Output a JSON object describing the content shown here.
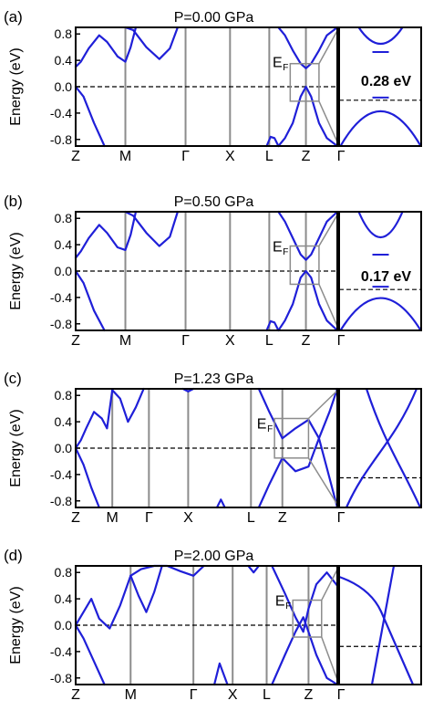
{
  "figure": {
    "ylabel": "Energy (eV)",
    "ef_label": "E",
    "ef_sub": "F"
  },
  "colors": {
    "band": "#1f1fd8",
    "kline": "#8c8c8c",
    "inset_box": "#8c8c8c"
  },
  "chart_data": [
    {
      "type": "line",
      "panel_label": "(a)",
      "title": "P=0.00 GPa",
      "ylabel": "Energy (eV)",
      "ylim": [
        -0.9,
        0.9
      ],
      "yticks": [
        0.8,
        0.4,
        0.0,
        -0.4,
        -0.8
      ],
      "ytick_labels": [
        "0.8",
        "0.4",
        "0.0",
        "-0.4",
        "-0.8"
      ],
      "xticks": [
        {
          "label": "Z",
          "pos": 0.0
        },
        {
          "label": "M",
          "pos": 0.19
        },
        {
          "label": "Γ",
          "pos": 0.42
        },
        {
          "label": "X",
          "pos": 0.59
        },
        {
          "label": "L",
          "pos": 0.74
        },
        {
          "label": "Z",
          "pos": 0.88
        },
        {
          "label": "Γ",
          "pos": 1.0
        }
      ],
      "fermi_level": 0.0,
      "series": [
        {
          "x": [
            0,
            0.02,
            0.05,
            0.09,
            0.12,
            0.16,
            0.19,
            0.21,
            0.23
          ],
          "y": [
            0.3,
            0.38,
            0.58,
            0.78,
            0.68,
            0.46,
            0.38,
            0.6,
            0.9
          ]
        },
        {
          "x": [
            0.19,
            0.22,
            0.27,
            0.32,
            0.36,
            0.39
          ],
          "y": [
            0.9,
            0.86,
            0.6,
            0.42,
            0.58,
            0.9
          ]
        },
        {
          "x": [
            0,
            0.03,
            0.07,
            0.11
          ],
          "y": [
            0,
            -0.15,
            -0.55,
            -0.9
          ]
        },
        {
          "x": [
            0.73,
            0.745,
            0.76,
            0.775
          ],
          "y": [
            -0.9,
            -0.76,
            -0.78,
            -0.9
          ]
        },
        {
          "x": [
            0.775,
            0.8,
            0.83,
            0.86,
            0.88,
            0.9,
            0.93,
            0.96,
            1.0
          ],
          "y": [
            0.9,
            0.78,
            0.55,
            0.35,
            0.28,
            0.35,
            0.55,
            0.78,
            0.9
          ]
        },
        {
          "x": [
            0.775,
            0.8,
            0.83,
            0.86,
            0.88,
            0.9,
            0.93,
            0.96,
            1.0
          ],
          "y": [
            -0.9,
            -0.78,
            -0.55,
            -0.15,
            0.0,
            -0.15,
            -0.55,
            -0.78,
            -0.9
          ]
        }
      ],
      "zoom_box": {
        "x": [
          0.82,
          0.93
        ],
        "y": [
          -0.22,
          0.35
        ]
      },
      "inset": {
        "gap_label": "0.28 eV",
        "gap_ev": 0.28,
        "cb_min": 0.28,
        "vb_max": 0.0
      }
    },
    {
      "type": "line",
      "panel_label": "(b)",
      "title": "P=0.50 GPa",
      "ylabel": "Energy (eV)",
      "ylim": [
        -0.9,
        0.9
      ],
      "yticks": [
        0.8,
        0.4,
        0.0,
        -0.4,
        -0.8
      ],
      "ytick_labels": [
        "0.8",
        "0.4",
        "0.0",
        "-0.4",
        "-0.8"
      ],
      "xticks": [
        {
          "label": "Z",
          "pos": 0.0
        },
        {
          "label": "M",
          "pos": 0.19
        },
        {
          "label": "Γ",
          "pos": 0.42
        },
        {
          "label": "X",
          "pos": 0.59
        },
        {
          "label": "L",
          "pos": 0.74
        },
        {
          "label": "Z",
          "pos": 0.88
        },
        {
          "label": "Γ",
          "pos": 1.0
        }
      ],
      "fermi_level": 0.0,
      "series": [
        {
          "x": [
            0,
            0.02,
            0.05,
            0.09,
            0.12,
            0.16,
            0.19,
            0.21,
            0.23
          ],
          "y": [
            0.2,
            0.3,
            0.5,
            0.7,
            0.58,
            0.36,
            0.32,
            0.55,
            0.9
          ]
        },
        {
          "x": [
            0.19,
            0.22,
            0.27,
            0.32,
            0.36,
            0.39
          ],
          "y": [
            0.9,
            0.84,
            0.58,
            0.38,
            0.52,
            0.9
          ]
        },
        {
          "x": [
            0,
            0.03,
            0.07,
            0.11
          ],
          "y": [
            0,
            -0.18,
            -0.6,
            -0.9
          ]
        },
        {
          "x": [
            0.73,
            0.745,
            0.76,
            0.775
          ],
          "y": [
            -0.9,
            -0.76,
            -0.78,
            -0.9
          ]
        },
        {
          "x": [
            0.775,
            0.8,
            0.83,
            0.86,
            0.88,
            0.9,
            0.93,
            0.96,
            1.0
          ],
          "y": [
            0.9,
            0.75,
            0.5,
            0.25,
            0.17,
            0.25,
            0.5,
            0.75,
            0.9
          ]
        },
        {
          "x": [
            0.775,
            0.8,
            0.83,
            0.86,
            0.88,
            0.9,
            0.93,
            0.96,
            1.0
          ],
          "y": [
            -0.9,
            -0.75,
            -0.5,
            -0.1,
            0.0,
            -0.1,
            -0.5,
            -0.75,
            -0.9
          ]
        }
      ],
      "zoom_box": {
        "x": [
          0.82,
          0.93
        ],
        "y": [
          -0.2,
          0.38
        ]
      },
      "inset": {
        "gap_label": "0.17 eV",
        "gap_ev": 0.17,
        "cb_min": 0.17,
        "vb_max": 0.0
      }
    },
    {
      "type": "line",
      "panel_label": "(c)",
      "title": "P=1.23 GPa",
      "ylabel": "Energy (eV)",
      "ylim": [
        -0.9,
        0.9
      ],
      "yticks": [
        0.8,
        0.4,
        0.0,
        -0.4,
        -0.8
      ],
      "ytick_labels": [
        "0.8",
        "0.4",
        "0.0",
        "-0.4",
        "-0.8"
      ],
      "xticks": [
        {
          "label": "Z",
          "pos": 0.0
        },
        {
          "label": "M",
          "pos": 0.14
        },
        {
          "label": "Γ",
          "pos": 0.28
        },
        {
          "label": "X",
          "pos": 0.43
        },
        {
          "label": "L",
          "pos": 0.67
        },
        {
          "label": "Z",
          "pos": 0.79
        },
        {
          "label": "Γ",
          "pos": 1.0
        }
      ],
      "fermi_level": 0.0,
      "series": [
        {
          "x": [
            0,
            0.02,
            0.04,
            0.07,
            0.1,
            0.12,
            0.14
          ],
          "y": [
            0.0,
            0.12,
            0.3,
            0.55,
            0.45,
            0.3,
            0.88
          ]
        },
        {
          "x": [
            0.14,
            0.17,
            0.2,
            0.23,
            0.26
          ],
          "y": [
            0.88,
            0.75,
            0.4,
            0.62,
            0.9
          ]
        },
        {
          "x": [
            0,
            0.03,
            0.06,
            0.09
          ],
          "y": [
            0.0,
            -0.25,
            -0.6,
            -0.9
          ]
        },
        {
          "x": [
            0.41,
            0.43,
            0.45
          ],
          "y": [
            0.9,
            0.86,
            0.9
          ]
        },
        {
          "x": [
            0.54,
            0.555,
            0.57
          ],
          "y": [
            -0.9,
            -0.78,
            -0.9
          ]
        },
        {
          "x": [
            0.7,
            0.74,
            0.79,
            0.84,
            0.89,
            0.93,
            0.97,
            1.0
          ],
          "y": [
            0.9,
            0.55,
            0.15,
            0.3,
            0.43,
            0.15,
            -0.45,
            -0.9
          ]
        },
        {
          "x": [
            0.7,
            0.74,
            0.79,
            0.84,
            0.89,
            0.93,
            0.97,
            1.0
          ],
          "y": [
            -0.9,
            -0.55,
            -0.15,
            -0.35,
            -0.28,
            0.15,
            0.55,
            0.9
          ]
        }
      ],
      "zoom_box": {
        "x": [
          0.76,
          0.89
        ],
        "y": [
          -0.15,
          0.45
        ]
      },
      "inset": {
        "gap_label": "",
        "gap_ev": 0.0,
        "cb_min": 0.0,
        "vb_max": 0.0
      }
    },
    {
      "type": "line",
      "panel_label": "(d)",
      "title": "P=2.00 GPa",
      "ylabel": "Energy (eV)",
      "ylim": [
        -0.9,
        0.9
      ],
      "yticks": [
        0.8,
        0.4,
        0.0,
        -0.4,
        -0.8
      ],
      "ytick_labels": [
        "0.8",
        "0.4",
        "0.0",
        "-0.4",
        "-0.8"
      ],
      "xticks": [
        {
          "label": "Z",
          "pos": 0.0
        },
        {
          "label": "M",
          "pos": 0.21
        },
        {
          "label": "Γ",
          "pos": 0.45
        },
        {
          "label": "X",
          "pos": 0.6
        },
        {
          "label": "L",
          "pos": 0.73
        },
        {
          "label": "Z",
          "pos": 0.89
        },
        {
          "label": "Γ",
          "pos": 1.0
        }
      ],
      "fermi_level": 0.0,
      "series": [
        {
          "x": [
            0,
            0.03,
            0.06,
            0.09,
            0.13,
            0.17,
            0.21
          ],
          "y": [
            0.0,
            0.2,
            0.4,
            0.1,
            -0.05,
            0.3,
            0.75
          ]
        },
        {
          "x": [
            0,
            0.03,
            0.07,
            0.11
          ],
          "y": [
            0.0,
            -0.2,
            -0.55,
            -0.9
          ]
        },
        {
          "x": [
            0.21,
            0.24,
            0.27,
            0.3,
            0.33
          ],
          "y": [
            0.75,
            0.45,
            0.2,
            0.5,
            0.9
          ]
        },
        {
          "x": [
            0.21,
            0.25,
            0.3,
            0.35,
            0.4,
            0.45,
            0.49
          ],
          "y": [
            0.75,
            0.85,
            0.9,
            0.9,
            0.82,
            0.75,
            0.9
          ]
        },
        {
          "x": [
            0.53,
            0.55,
            0.58
          ],
          "y": [
            -0.9,
            -0.58,
            -0.9
          ]
        },
        {
          "x": [
            0.66,
            0.68,
            0.7
          ],
          "y": [
            0.9,
            0.8,
            0.9
          ]
        },
        {
          "x": [
            0.75,
            0.8,
            0.84,
            0.87,
            0.89,
            0.92,
            0.96,
            1.0
          ],
          "y": [
            0.9,
            0.48,
            0.12,
            -0.1,
            0.25,
            0.62,
            0.8,
            0.6
          ]
        },
        {
          "x": [
            0.75,
            0.8,
            0.84,
            0.87,
            0.89,
            0.92,
            0.96,
            1.0
          ],
          "y": [
            -0.9,
            -0.45,
            -0.1,
            0.12,
            -0.1,
            -0.45,
            -0.8,
            -0.9
          ]
        }
      ],
      "zoom_box": {
        "x": [
          0.83,
          0.94
        ],
        "y": [
          -0.18,
          0.38
        ]
      },
      "inset": {
        "gap_label": "",
        "gap_ev": 0.0,
        "cb_min": 0.0,
        "vb_max": 0.0
      }
    }
  ]
}
